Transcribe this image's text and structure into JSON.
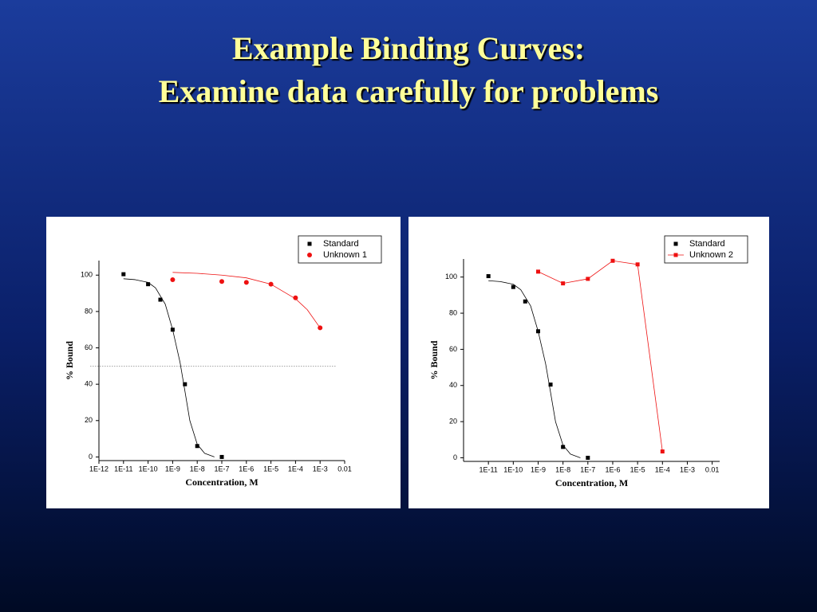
{
  "slide": {
    "title": [
      "Example Binding Curves:",
      "Examine data carefully for problems"
    ]
  },
  "chart_data": [
    {
      "type": "scatter",
      "xlabel": "Concentration, M",
      "ylabel": "% Bound",
      "xlog": true,
      "xlim": [
        1e-12,
        0.01
      ],
      "ylim": [
        -2,
        108
      ],
      "xticks": [
        {
          "value": 1e-12,
          "label": "1E-12"
        },
        {
          "value": 1e-11,
          "label": "1E-11"
        },
        {
          "value": 1e-10,
          "label": "1E-10"
        },
        {
          "value": 1e-09,
          "label": "1E-9"
        },
        {
          "value": 1e-08,
          "label": "1E-8"
        },
        {
          "value": 1e-07,
          "label": "1E-7"
        },
        {
          "value": 1e-06,
          "label": "1E-6"
        },
        {
          "value": 1e-05,
          "label": "1E-5"
        },
        {
          "value": 0.0001,
          "label": "1E-4"
        },
        {
          "value": 0.001,
          "label": "1E-3"
        },
        0.01
      ],
      "yticks": [
        0,
        20,
        40,
        60,
        80,
        100
      ],
      "legend": "upper right",
      "series": [
        {
          "name": "Standard",
          "color": "#000000",
          "marker": "square",
          "line": false,
          "x": [
            1e-11,
            1e-10,
            3.16e-10,
            1e-09,
            3.16e-09,
            1e-08,
            1e-07
          ],
          "values": [
            100.5,
            95,
            86.5,
            70,
            40,
            6,
            0
          ]
        },
        {
          "name": "Unknown 1",
          "color": "#ee1111",
          "marker": "circle",
          "line": false,
          "x": [
            1e-09,
            1e-07,
            1e-06,
            1e-05,
            0.0001,
            0.001
          ],
          "values": [
            97.5,
            96.5,
            96,
            95,
            87.5,
            71
          ]
        }
      ],
      "fits": [
        {
          "color": "#000000",
          "x": [
            1e-11,
            3e-11,
            1e-10,
            2e-10,
            5e-10,
            1e-09,
            2e-09,
            3e-09,
            5e-09,
            1e-08,
            2e-08,
            5e-08
          ],
          "values": [
            98,
            97.5,
            96,
            93,
            84,
            70,
            52,
            38,
            20,
            7,
            2,
            0
          ]
        },
        {
          "color": "#ee1111",
          "x": [
            1e-09,
            1e-08,
            1e-07,
            1e-06,
            1e-05,
            0.0001,
            0.0003,
            0.001
          ],
          "values": [
            101.5,
            101,
            100,
            98.5,
            95,
            87,
            81,
            71
          ]
        }
      ],
      "reference_line": {
        "value": 50,
        "style": "dotted",
        "color": "#888888"
      }
    },
    {
      "type": "scatter",
      "xlabel": "Concentration, M",
      "ylabel": "% Bound",
      "xlog": true,
      "xlim": [
        1e-12,
        0.02
      ],
      "ylim": [
        -2,
        110
      ],
      "xticks": [
        {
          "value": 1e-11,
          "label": "1E-11"
        },
        {
          "value": 1e-10,
          "label": "1E-10"
        },
        {
          "value": 1e-09,
          "label": "1E-9"
        },
        {
          "value": 1e-08,
          "label": "1E-8"
        },
        {
          "value": 1e-07,
          "label": "1E-7"
        },
        {
          "value": 1e-06,
          "label": "1E-6"
        },
        {
          "value": 1e-05,
          "label": "1E-5"
        },
        {
          "value": 0.0001,
          "label": "1E-4"
        },
        {
          "value": 0.001,
          "label": "1E-3"
        },
        0.01
      ],
      "yticks": [
        0,
        20,
        40,
        60,
        80,
        100
      ],
      "legend": "upper right",
      "series": [
        {
          "name": "Standard",
          "color": "#000000",
          "marker": "square",
          "line": false,
          "x": [
            1e-11,
            1e-10,
            3.02e-10,
            1e-09,
            3.16e-09,
            1e-08,
            1e-07
          ],
          "values": [
            100.5,
            94.5,
            86.5,
            70,
            40.5,
            6,
            0
          ]
        },
        {
          "name": "Unknown 2",
          "color": "#ee1111",
          "marker": "square",
          "line": true,
          "x": [
            1e-09,
            1e-08,
            1e-07,
            1e-06,
            1e-05,
            0.0001
          ],
          "values": [
            103,
            96.5,
            99,
            109,
            107,
            3.5
          ]
        }
      ],
      "fits": [
        {
          "color": "#000000",
          "x": [
            1e-11,
            3e-11,
            1e-10,
            2e-10,
            5e-10,
            1e-09,
            2e-09,
            3e-09,
            5e-09,
            1e-08,
            2e-08,
            5e-08
          ],
          "values": [
            98,
            97.5,
            96,
            93,
            84,
            70,
            52,
            38,
            20,
            7,
            2,
            0
          ]
        }
      ]
    }
  ]
}
